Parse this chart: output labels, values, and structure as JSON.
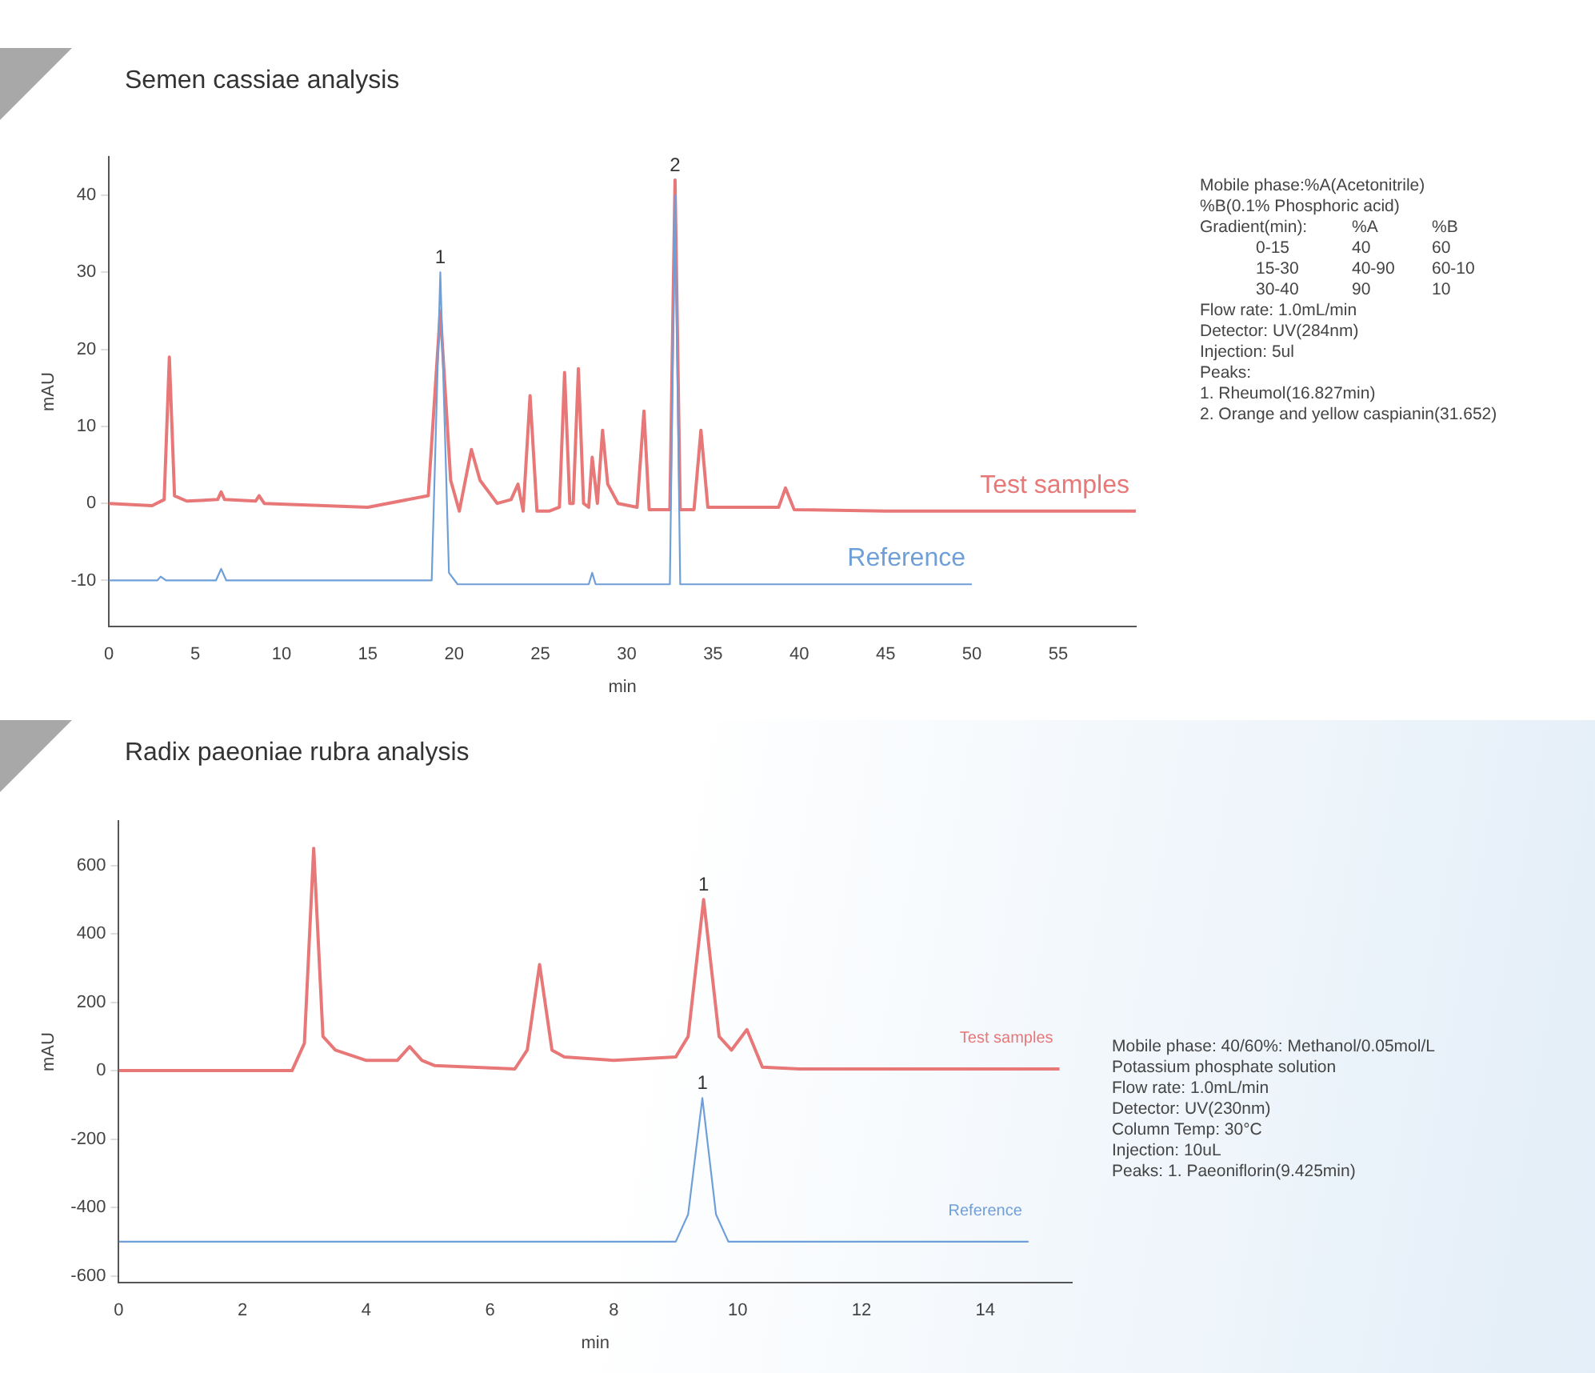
{
  "chart_data": [
    {
      "type": "line",
      "title": "Semen cassiae analysis",
      "xlabel": "min",
      "ylabel": "mAU",
      "xlim": [
        0,
        59.5
      ],
      "xticks": [
        0,
        5,
        10,
        15,
        20,
        25,
        30,
        35,
        40,
        45,
        50,
        55
      ],
      "ylim": [
        -16,
        45
      ],
      "yticks": [
        -10,
        0,
        10,
        20,
        30,
        40
      ],
      "grid": false,
      "legend": false,
      "marker": "none",
      "series": [
        {
          "name": "Test samples",
          "color": "#e87878",
          "x": [
            0,
            2.5,
            3.2,
            3.5,
            3.8,
            4.5,
            6.3,
            6.5,
            6.7,
            8.5,
            8.7,
            9,
            15,
            18.5,
            19.2,
            19.8,
            20.3,
            21,
            21.5,
            22.5,
            23.3,
            23.7,
            24,
            24.4,
            24.8,
            25.5,
            26.1,
            26.4,
            26.7,
            26.9,
            27.2,
            27.5,
            27.8,
            28,
            28.3,
            28.6,
            28.9,
            29.5,
            30.6,
            31,
            31.3,
            32.5,
            32.8,
            33.1,
            33.9,
            34.3,
            34.7,
            38.8,
            39.2,
            39.7,
            45,
            59.5
          ],
          "values": [
            0,
            -0.3,
            0.5,
            19,
            1,
            0.3,
            0.5,
            1.5,
            0.5,
            0.3,
            1,
            0,
            -0.5,
            1,
            25,
            3,
            -1,
            7,
            3,
            0,
            0.5,
            2.5,
            -1,
            14,
            -1,
            -1,
            -0.5,
            17,
            0,
            0,
            17.5,
            0,
            -0.5,
            6,
            0,
            9.5,
            2.5,
            0,
            -0.5,
            12,
            -0.8,
            -0.8,
            42,
            -0.8,
            -0.8,
            9.5,
            -0.5,
            -0.5,
            2,
            -0.8,
            -1,
            -1
          ]
        },
        {
          "name": "Reference",
          "color": "#6f9fd8",
          "x": [
            0,
            2.8,
            3,
            3.3,
            6.2,
            6.5,
            6.8,
            18.7,
            19.2,
            19.7,
            20.2,
            27.8,
            28,
            28.2,
            32.5,
            32.8,
            33.1,
            39,
            50
          ],
          "values": [
            -10,
            -10,
            -9.5,
            -10,
            -10,
            -8.5,
            -10,
            -10,
            30,
            -9,
            -10.5,
            -10.5,
            -9,
            -10.5,
            -10.5,
            40,
            -10.5,
            -10.5,
            -10.5
          ]
        }
      ],
      "annotations": [
        {
          "text": "1",
          "x": 19.2,
          "y": 30
        },
        {
          "text": "2",
          "x": 32.8,
          "y": 42
        },
        "Mobile phase:%A(Acetonitrile)",
        "%B(0.1% Phosphoric acid)",
        "Gradient(min):\t%A\t%B",
        "0-15\t40\t60",
        "15-30\t40-90\t60-10",
        "30-40\t90\t10",
        "Flow rate: 1.0mL/min",
        "Detector: UV(284nm)",
        "Injection: 5ul",
        "Peaks:",
        "1. Rheumol(16.827min)",
        "2. Orange and yellow caspianin(31.652)"
      ]
    },
    {
      "type": "line",
      "title": "Radix paeoniae rubra analysis",
      "xlabel": "min",
      "ylabel": "mAU",
      "xlim": [
        0,
        15.4
      ],
      "xticks": [
        0,
        2,
        4,
        6,
        8,
        10,
        12,
        14
      ],
      "ylim": [
        -620,
        730
      ],
      "yticks": [
        -600,
        -400,
        -200,
        0,
        200,
        400,
        600
      ],
      "grid": false,
      "legend": false,
      "marker": "none",
      "series": [
        {
          "name": "Test samples",
          "color": "#e87878",
          "x": [
            0,
            2.8,
            3,
            3.15,
            3.3,
            3.5,
            4,
            4.5,
            4.7,
            4.9,
            5.1,
            6.4,
            6.6,
            6.8,
            7,
            7.2,
            8,
            9,
            9.2,
            9.45,
            9.7,
            9.9,
            10.15,
            10.4,
            11,
            15.2
          ],
          "values": [
            0,
            0,
            80,
            650,
            100,
            60,
            30,
            30,
            70,
            30,
            15,
            5,
            60,
            310,
            60,
            40,
            30,
            40,
            100,
            500,
            100,
            60,
            120,
            10,
            5,
            5
          ]
        },
        {
          "name": "Reference",
          "color": "#6f9fd8",
          "x": [
            0,
            9,
            9.2,
            9.43,
            9.65,
            9.85,
            14.7
          ],
          "values": [
            -500,
            -500,
            -420,
            -80,
            -420,
            -500,
            -500
          ]
        }
      ],
      "annotations": [
        {
          "text": "1",
          "x": 9.45,
          "y": 500
        },
        {
          "text": "1",
          "x": 9.43,
          "y": -80
        },
        "Mobile phase: 40/60%: Methanol/0.05mol/L",
        "Potassium phosphate solution",
        "Flow rate: 1.0mL/min",
        "Detector: UV(230nm)",
        "Column Temp: 30°C",
        "Injection: 10uL",
        "Peaks: 1. Paeoniflorin(9.425min)"
      ]
    }
  ]
}
